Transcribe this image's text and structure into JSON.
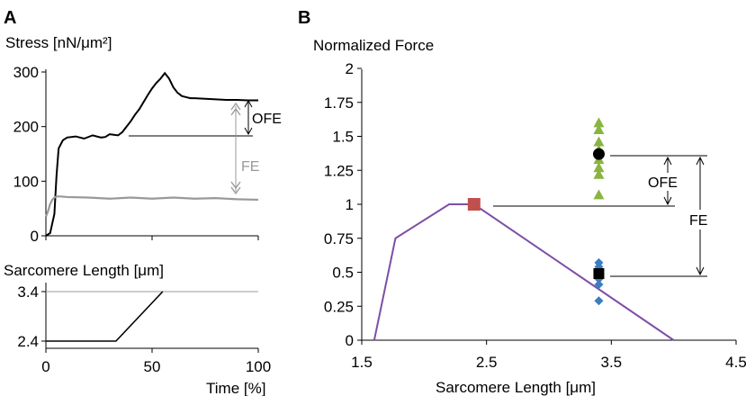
{
  "chart_data": [
    {
      "panel": "A",
      "type": "line",
      "ylabel": "Stress [nN/μm²]",
      "xlabel": "",
      "ylim": [
        0,
        300
      ],
      "yticks": [
        "300",
        "200",
        "100",
        "0"
      ],
      "xlim": [
        0,
        100
      ],
      "series": [
        {
          "color": "#000000",
          "x": [
            0,
            2,
            4,
            5,
            6,
            8,
            10,
            14,
            18,
            22,
            26,
            28,
            30,
            32,
            34,
            36,
            38,
            40,
            42,
            44,
            46,
            48,
            50,
            52,
            54,
            56,
            58,
            60,
            62,
            64,
            66,
            68,
            70,
            75,
            80,
            85,
            90,
            95,
            100
          ],
          "y": [
            0,
            5,
            40,
            110,
            160,
            175,
            180,
            182,
            178,
            184,
            180,
            181,
            186,
            185,
            184,
            190,
            200,
            210,
            222,
            232,
            245,
            258,
            270,
            280,
            288,
            298,
            288,
            272,
            262,
            256,
            254,
            252,
            252,
            251,
            250,
            249,
            249,
            248,
            248
          ]
        },
        {
          "color": "#999999",
          "x": [
            0,
            1,
            2,
            3,
            4,
            5,
            7,
            10,
            20,
            30,
            40,
            50,
            60,
            70,
            80,
            90,
            100
          ],
          "y": [
            35,
            45,
            58,
            66,
            70,
            72,
            72,
            71,
            70,
            68,
            70,
            68,
            70,
            68,
            69,
            67,
            66
          ]
        }
      ],
      "annotations": [
        "OFE",
        "FE"
      ]
    },
    {
      "panel": "A",
      "type": "line",
      "ylabel": "Sarcomere Length [μm]",
      "xlabel": "Time [%]",
      "xlim": [
        0,
        100
      ],
      "ylim": [
        2.4,
        3.4
      ],
      "xticks": [
        "0",
        "50",
        "100"
      ],
      "yticks": [
        "3.4",
        "2.4"
      ],
      "series": [
        {
          "color": "#000000",
          "x": [
            0,
            33,
            55
          ],
          "y": [
            2.4,
            2.4,
            3.4
          ]
        }
      ]
    },
    {
      "panel": "B",
      "type": "scatter",
      "ylabel": "Normalized Force",
      "xlabel": "Sarcomere Length [μm]",
      "xlim": [
        1.5,
        4.5
      ],
      "ylim": [
        0,
        2
      ],
      "xticks": [
        "1.5",
        "2.5",
        "3.5",
        "4.5"
      ],
      "yticks": [
        "2",
        "1.75",
        "1.5",
        "1.25",
        "1",
        "0.75",
        "0.5",
        "0.25",
        "0"
      ],
      "force_length_curve": {
        "color": "#7d4fa6",
        "x": [
          1.6,
          1.77,
          2.2,
          2.4,
          4.0
        ],
        "y": [
          0,
          0.75,
          1.0,
          1.0,
          0
        ]
      },
      "reference_point": {
        "x": 2.4,
        "y": 1.0,
        "color": "#c0504d"
      },
      "green_triangles": {
        "color": "#8ab440",
        "x": 3.4,
        "y": [
          1.6,
          1.55,
          1.46,
          1.4,
          1.33,
          1.27,
          1.22,
          1.07
        ]
      },
      "blue_diamonds": {
        "color": "#3a7ebf",
        "x": 3.4,
        "y": [
          0.57,
          0.54,
          0.51,
          0.45,
          0.41,
          0.29
        ]
      },
      "mean_enhanced": {
        "x": 3.4,
        "y": 1.37,
        "color": "#000000"
      },
      "mean_passive": {
        "x": 3.4,
        "y": 0.49,
        "color": "#000000"
      },
      "annotations": [
        "OFE",
        "FE"
      ]
    }
  ],
  "labels": {
    "panel_a": "A",
    "panel_b": "B",
    "a_top_ylabel": "Stress [nN/μm²]",
    "a_bottom_ylabel": "Sarcomere Length [μm]",
    "a_xlabel": "Time [%]",
    "b_ylabel": "Normalized Force",
    "b_xlabel": "Sarcomere Length [μm]",
    "ofe": "OFE",
    "fe": "FE"
  }
}
